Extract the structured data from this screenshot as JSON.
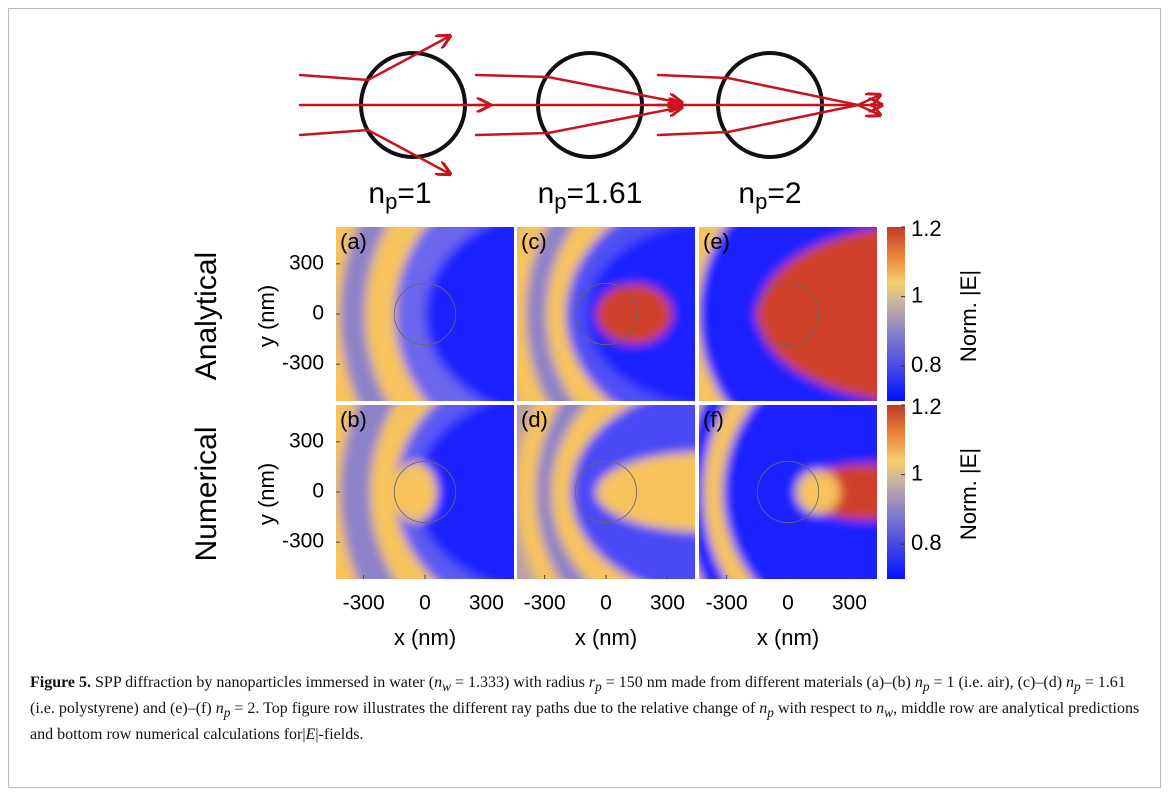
{
  "figure": {
    "ray_labels": [
      {
        "base": "n",
        "sub": "p",
        "rest": "=1"
      },
      {
        "base": "n",
        "sub": "p",
        "rest": "=1.61"
      },
      {
        "base": "n",
        "sub": "p",
        "rest": "=2"
      }
    ],
    "row_labels": [
      "Analytical",
      "Numerical"
    ],
    "panel_labels": [
      [
        "(a)",
        "(c)",
        "(e)"
      ],
      [
        "(b)",
        "(d)",
        "(f)"
      ]
    ],
    "y_label": "y (nm)",
    "x_label": "x (nm)",
    "xlim": [
      -435,
      435
    ],
    "ylim": [
      -520,
      520
    ],
    "xticks": [
      -300,
      0,
      300
    ],
    "yticks": [
      300,
      0,
      -300
    ],
    "colorbar": {
      "label": "Norm. |E|",
      "lim": [
        0.7,
        1.2
      ],
      "ticks": [
        1.2,
        1,
        0.8
      ]
    }
  },
  "caption": {
    "label": "Figure 5.",
    "runs": [
      "SPP diffraction by nanoparticles immersed in water (",
      {
        "v": "n",
        "s": "w"
      },
      " = 1.333) with radius ",
      {
        "v": "r",
        "s": "p"
      },
      " = 150 nm made from different materials (a)–(b) ",
      {
        "v": "n",
        "s": "p"
      },
      " = 1 (i.e. air), (c)–(d) ",
      {
        "v": "n",
        "s": "p"
      },
      " = 1.61 (i.e. polystyrene) and (e)–(f) ",
      {
        "v": "n",
        "s": "p"
      },
      " = 2. Top figure row illustrates the different ray paths due to the relative change of ",
      {
        "v": "n",
        "s": "p"
      },
      " with respect to ",
      {
        "v": "n",
        "s": "w"
      },
      ", middle row are analytical predictions and bottom row numerical calculations for|",
      {
        "v": "E"
      },
      "|-fields."
    ]
  }
}
